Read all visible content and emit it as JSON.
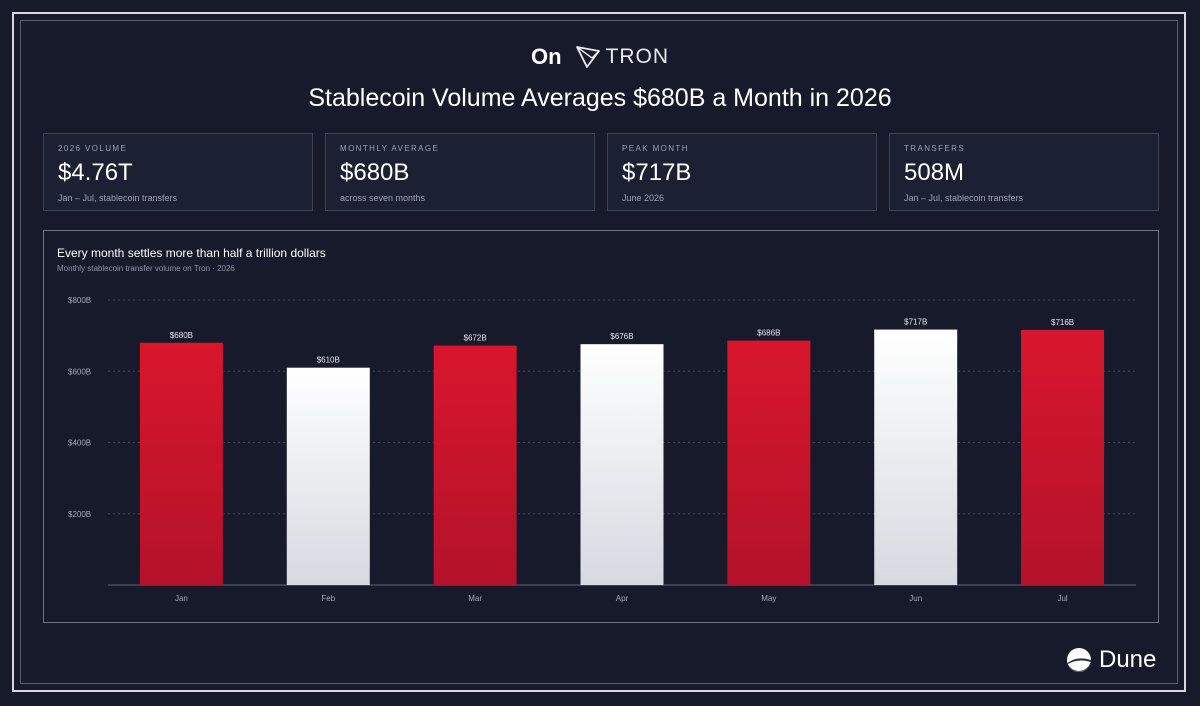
{
  "header": {
    "prefix": "On",
    "brand": "TRON",
    "title": "Stablecoin Volume Averages $680B a Month in 2026"
  },
  "kpis": [
    {
      "label": "2026 VOLUME",
      "value": "$4.76T",
      "sub": "Jan – Jul, stablecoin transfers"
    },
    {
      "label": "MONTHLY AVERAGE",
      "value": "$680B",
      "sub": "across seven months"
    },
    {
      "label": "PEAK MONTH",
      "value": "$717B",
      "sub": "June 2026"
    },
    {
      "label": "TRANSFERS",
      "value": "508M",
      "sub": "Jan – Jul, stablecoin transfers"
    }
  ],
  "footer": {
    "brand": "Dune"
  },
  "chart_data": {
    "type": "bar",
    "title": "Every month settles more than half a trillion dollars",
    "subtitle": "Monthly stablecoin transfer volume on Tron · 2026",
    "categories": [
      "Jan",
      "Feb",
      "Mar",
      "Apr",
      "May",
      "Jun",
      "Jul"
    ],
    "values": [
      680,
      610,
      672,
      676,
      686,
      717,
      716
    ],
    "value_labels": [
      "$680B",
      "$610B",
      "$672B",
      "$676B",
      "$686B",
      "$717B",
      "$716B"
    ],
    "bar_colors": [
      "red",
      "white",
      "red",
      "white",
      "red",
      "white",
      "red"
    ],
    "ylim": [
      0,
      800
    ],
    "yticks": [
      200,
      400,
      600,
      800
    ],
    "ytick_labels": [
      "$200B",
      "$400B",
      "$600B",
      "$800B"
    ],
    "grid": true,
    "colors": {
      "red": "#d0172e",
      "white": "#f4f4f6",
      "grid": "#3e4458",
      "axis": "#5d6276",
      "tick_text": "#a3a8b8"
    }
  }
}
